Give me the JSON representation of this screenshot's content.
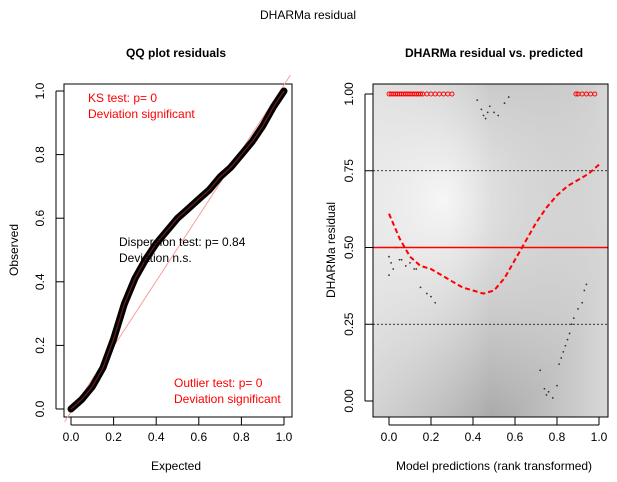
{
  "figure": {
    "title": "DHARMa residual"
  },
  "colors": {
    "text": "#000000",
    "test": "#ff0000",
    "qq_points": "#000000",
    "qq_line": "#f4a0a0",
    "dots": "#333333"
  },
  "chart_data": [
    {
      "type": "scatter",
      "title": "QQ plot residuals",
      "xlabel": "Expected",
      "ylabel": "Observed",
      "xlim": [
        0,
        1
      ],
      "ylim": [
        0,
        1
      ],
      "x_ticks": [
        "0.0",
        "0.2",
        "0.4",
        "0.6",
        "0.8",
        "1.0"
      ],
      "y_ticks": [
        "0.0",
        "0.2",
        "0.4",
        "0.6",
        "0.8",
        "1.0"
      ],
      "reference_line": {
        "x": [
          0,
          1
        ],
        "y": [
          0,
          1
        ]
      },
      "series": [
        {
          "x": [
            0.0,
            0.05,
            0.1,
            0.15,
            0.2,
            0.25,
            0.3,
            0.35,
            0.4,
            0.45,
            0.5,
            0.55,
            0.6,
            0.65,
            0.7,
            0.75,
            0.8,
            0.85,
            0.9,
            0.95,
            1.0
          ],
          "y": [
            0.0,
            0.03,
            0.07,
            0.13,
            0.22,
            0.33,
            0.41,
            0.47,
            0.52,
            0.56,
            0.6,
            0.63,
            0.66,
            0.69,
            0.73,
            0.76,
            0.8,
            0.84,
            0.89,
            0.95,
            1.0
          ]
        }
      ],
      "annotations": {
        "ks": [
          "KS test: p= 0",
          "Deviation  significant"
        ],
        "dispersion": [
          "Dispersion test: p= 0.84",
          "Deviation  n.s."
        ],
        "outlier": [
          "Outlier test: p= 0",
          "Deviation  significant"
        ]
      }
    },
    {
      "type": "scatter",
      "title": "DHARMa residual vs. predicted",
      "xlabel": "Model predictions (rank transformed)",
      "ylabel": "DHARMa residual",
      "xlim": [
        0,
        1
      ],
      "ylim": [
        0,
        1
      ],
      "x_ticks": [
        "0.0",
        "0.2",
        "0.4",
        "0.6",
        "0.8",
        "1.0"
      ],
      "y_ticks": [
        "0.00",
        "0.25",
        "0.50",
        "0.75",
        "1.00"
      ],
      "reference_lines": [
        0.25,
        0.5,
        0.75
      ],
      "background": "grey density",
      "outliers": {
        "x": [
          0.0,
          0.01,
          0.02,
          0.03,
          0.04,
          0.05,
          0.06,
          0.07,
          0.08,
          0.09,
          0.1,
          0.11,
          0.12,
          0.13,
          0.14,
          0.15,
          0.16,
          0.18,
          0.2,
          0.22,
          0.24,
          0.26,
          0.28,
          0.3,
          0.89,
          0.9,
          0.92,
          0.94,
          0.96,
          0.98
        ],
        "y": [
          1,
          1,
          1,
          1,
          1,
          1,
          1,
          1,
          1,
          1,
          1,
          1,
          1,
          1,
          1,
          1,
          1,
          1,
          1,
          1,
          1,
          1,
          1,
          1,
          1,
          1,
          1,
          1,
          1,
          1
        ]
      },
      "points": {
        "x": [
          0.0,
          0.0,
          0.01,
          0.02,
          0.03,
          0.05,
          0.06,
          0.08,
          0.1,
          0.12,
          0.13,
          0.15,
          0.18,
          0.2,
          0.22,
          0.42,
          0.44,
          0.45,
          0.46,
          0.47,
          0.48,
          0.5,
          0.52,
          0.55,
          0.57,
          0.72,
          0.74,
          0.75,
          0.76,
          0.78,
          0.8,
          0.81,
          0.82,
          0.83,
          0.84,
          0.85,
          0.86,
          0.87,
          0.88,
          0.9,
          0.92,
          0.93,
          0.94
        ],
        "y": [
          0.47,
          0.41,
          0.45,
          0.43,
          0.5,
          0.46,
          0.46,
          0.44,
          0.45,
          0.43,
          0.43,
          0.37,
          0.35,
          0.34,
          0.32,
          0.98,
          0.95,
          0.93,
          0.92,
          0.94,
          0.96,
          0.94,
          0.93,
          0.97,
          0.99,
          0.1,
          0.04,
          0.02,
          0.03,
          0.01,
          0.05,
          0.12,
          0.14,
          0.16,
          0.18,
          0.2,
          0.22,
          0.25,
          0.27,
          0.3,
          0.32,
          0.36,
          0.38
        ]
      },
      "series": [
        {
          "name": "",
          "x": [
            0.0,
            0.05,
            0.1,
            0.15,
            0.2,
            0.25,
            0.3,
            0.35,
            0.4,
            0.45,
            0.5,
            0.55,
            0.6,
            0.65,
            0.7,
            0.75,
            0.8,
            0.85,
            0.9,
            0.95,
            1.0
          ],
          "y": [
            0.61,
            0.53,
            0.47,
            0.44,
            0.43,
            0.41,
            0.39,
            0.37,
            0.36,
            0.35,
            0.36,
            0.4,
            0.46,
            0.52,
            0.58,
            0.63,
            0.67,
            0.7,
            0.72,
            0.74,
            0.77
          ]
        },
        {
          "name": "",
          "x": [
            0.0,
            1.0
          ],
          "y": [
            0.5,
            0.5
          ]
        }
      ]
    }
  ]
}
